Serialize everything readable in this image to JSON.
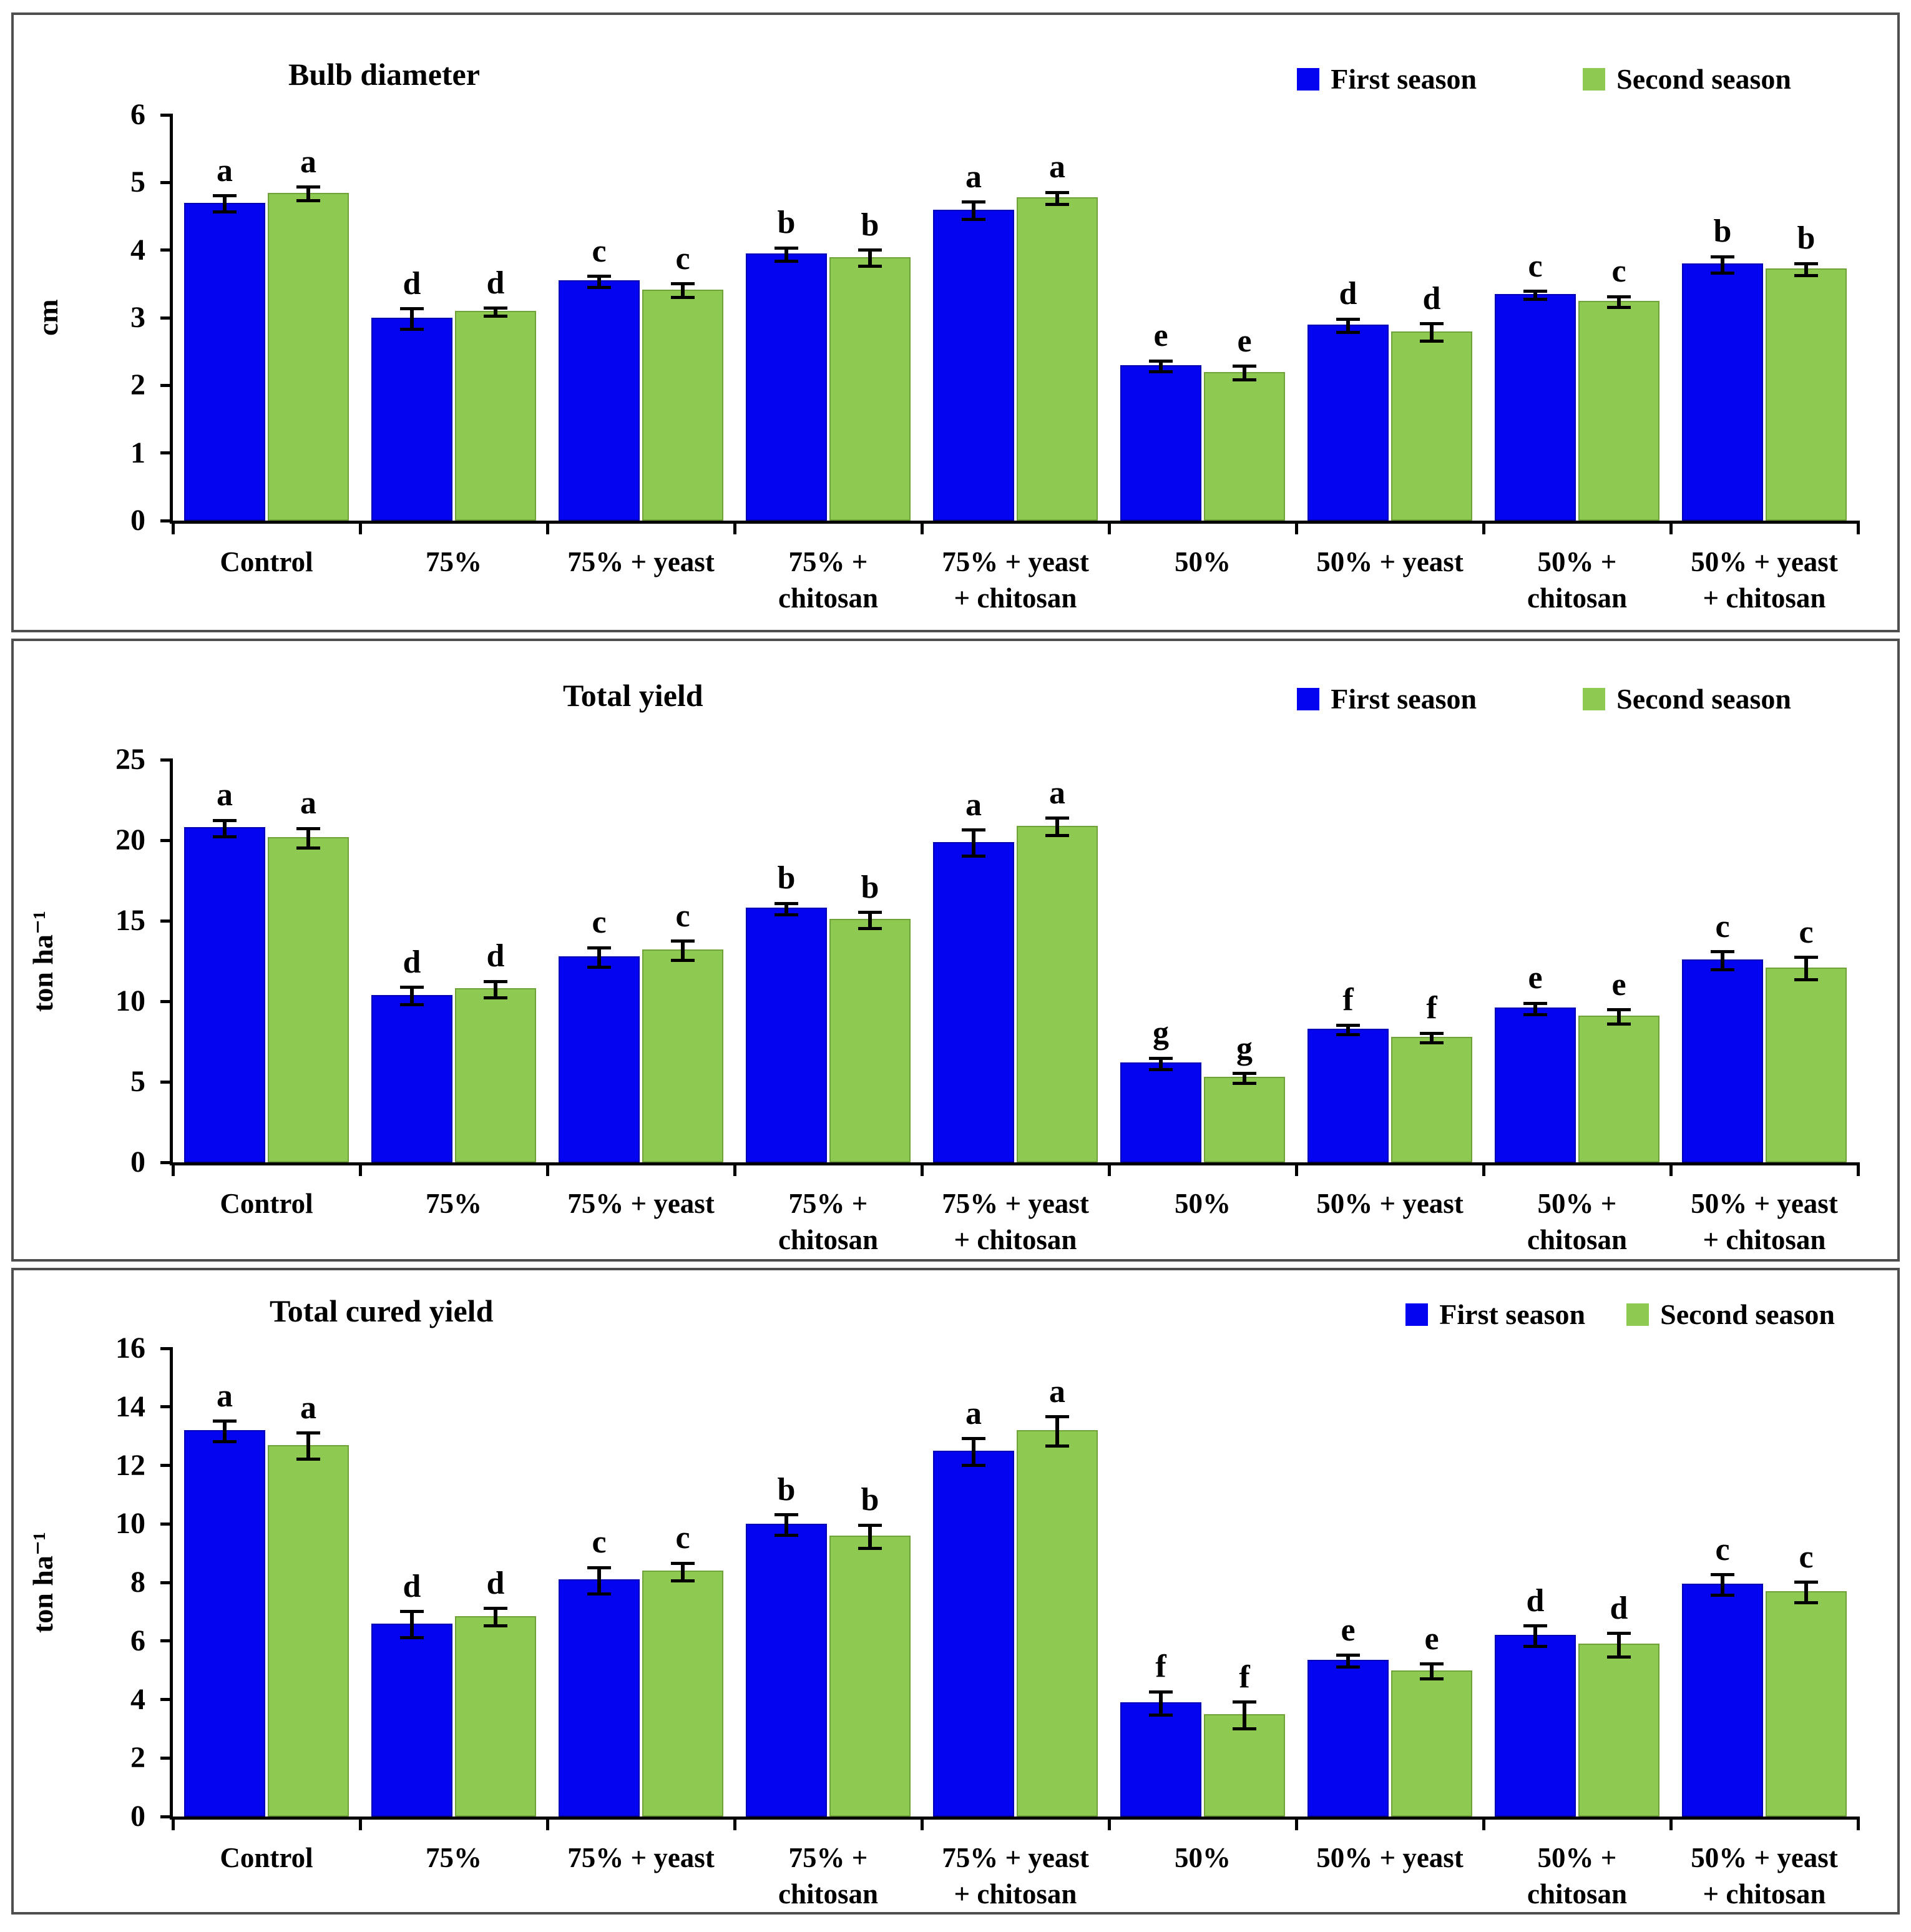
{
  "legend": {
    "first": "First season",
    "second": "Second season"
  },
  "colors": {
    "first_season": "#0404f0",
    "second_season": "#8ec952",
    "error_bar": "#000000",
    "axis": "#000000",
    "panel_border": "#4e4e4e"
  },
  "chart_data": [
    {
      "type": "bar",
      "title": "Bulb diameter",
      "ylabel": "cm",
      "ylim": [
        0,
        6
      ],
      "yticks": [
        0,
        1,
        2,
        3,
        4,
        5,
        6
      ],
      "grid": false,
      "legend_position": "top-right",
      "categories": [
        "Control",
        "75%",
        "75% + yeast",
        "75% +\nchitosan",
        "75% + yeast\n+ chitosan",
        "50%",
        "50% + yeast",
        "50% +\nchitosan",
        "50% + yeast\n+ chitosan"
      ],
      "series": [
        {
          "name": "First season",
          "values": [
            4.7,
            3.0,
            3.55,
            3.95,
            4.6,
            2.3,
            2.9,
            3.35,
            3.8
          ],
          "errors": [
            0.12,
            0.15,
            0.08,
            0.1,
            0.13,
            0.08,
            0.1,
            0.06,
            0.12
          ],
          "letters": [
            "a",
            "d",
            "c",
            "b",
            "a",
            "e",
            "d",
            "c",
            "b"
          ]
        },
        {
          "name": "Second season",
          "values": [
            4.85,
            3.1,
            3.42,
            3.9,
            4.78,
            2.2,
            2.8,
            3.25,
            3.73
          ],
          "errors": [
            0.1,
            0.06,
            0.1,
            0.12,
            0.09,
            0.1,
            0.13,
            0.08,
            0.09
          ],
          "letters": [
            "a",
            "d",
            "c",
            "b",
            "a",
            "e",
            "d",
            "c",
            "b"
          ]
        }
      ]
    },
    {
      "type": "bar",
      "title": "Total yield",
      "ylabel": "ton ha⁻¹",
      "ylim": [
        0,
        25
      ],
      "yticks": [
        0,
        5,
        10,
        15,
        20,
        25
      ],
      "grid": false,
      "legend_position": "top-right",
      "categories": [
        "Control",
        "75%",
        "75% + yeast",
        "75% +\nchitosan",
        "75% + yeast\n+ chitosan",
        "50%",
        "50% + yeast",
        "50% +\nchitosan",
        "50% + yeast\n+ chitosan"
      ],
      "series": [
        {
          "name": "First season",
          "values": [
            20.8,
            10.4,
            12.8,
            15.8,
            19.9,
            6.2,
            8.3,
            9.6,
            12.6
          ],
          "errors": [
            0.5,
            0.55,
            0.6,
            0.35,
            0.8,
            0.35,
            0.3,
            0.35,
            0.55
          ],
          "letters": [
            "a",
            "d",
            "c",
            "b",
            "a",
            "g",
            "f",
            "e",
            "c"
          ]
        },
        {
          "name": "Second season",
          "values": [
            20.2,
            10.8,
            13.2,
            15.1,
            20.9,
            5.3,
            7.8,
            9.1,
            12.1
          ],
          "errors": [
            0.6,
            0.5,
            0.6,
            0.5,
            0.55,
            0.3,
            0.3,
            0.45,
            0.7
          ],
          "letters": [
            "a",
            "d",
            "c",
            "b",
            "a",
            "g",
            "f",
            "e",
            "c"
          ]
        }
      ]
    },
    {
      "type": "bar",
      "title": "Total cured yield",
      "ylabel": "ton ha⁻¹",
      "ylim": [
        0,
        16
      ],
      "yticks": [
        0,
        2,
        4,
        6,
        8,
        10,
        12,
        14,
        16
      ],
      "grid": false,
      "legend_position": "top-right",
      "categories": [
        "Control",
        "75%",
        "75% + yeast",
        "75% +\nchitosan",
        "75% + yeast\n+ chitosan",
        "50%",
        "50% + yeast",
        "50% +\nchitosan",
        "50% + yeast\n+ chitosan"
      ],
      "series": [
        {
          "name": "First season",
          "values": [
            13.2,
            6.6,
            8.1,
            10.0,
            12.5,
            3.9,
            5.35,
            6.2,
            7.95
          ],
          "errors": [
            0.35,
            0.45,
            0.45,
            0.35,
            0.45,
            0.4,
            0.2,
            0.35,
            0.35
          ],
          "letters": [
            "a",
            "d",
            "c",
            "b",
            "a",
            "f",
            "e",
            "d",
            "c"
          ]
        },
        {
          "name": "Second season",
          "values": [
            12.7,
            6.85,
            8.4,
            9.6,
            13.2,
            3.5,
            5.0,
            5.9,
            7.7
          ],
          "errors": [
            0.45,
            0.3,
            0.3,
            0.4,
            0.5,
            0.45,
            0.25,
            0.4,
            0.35
          ],
          "letters": [
            "a",
            "d",
            "c",
            "b",
            "a",
            "f",
            "e",
            "d",
            "c"
          ]
        }
      ]
    }
  ]
}
